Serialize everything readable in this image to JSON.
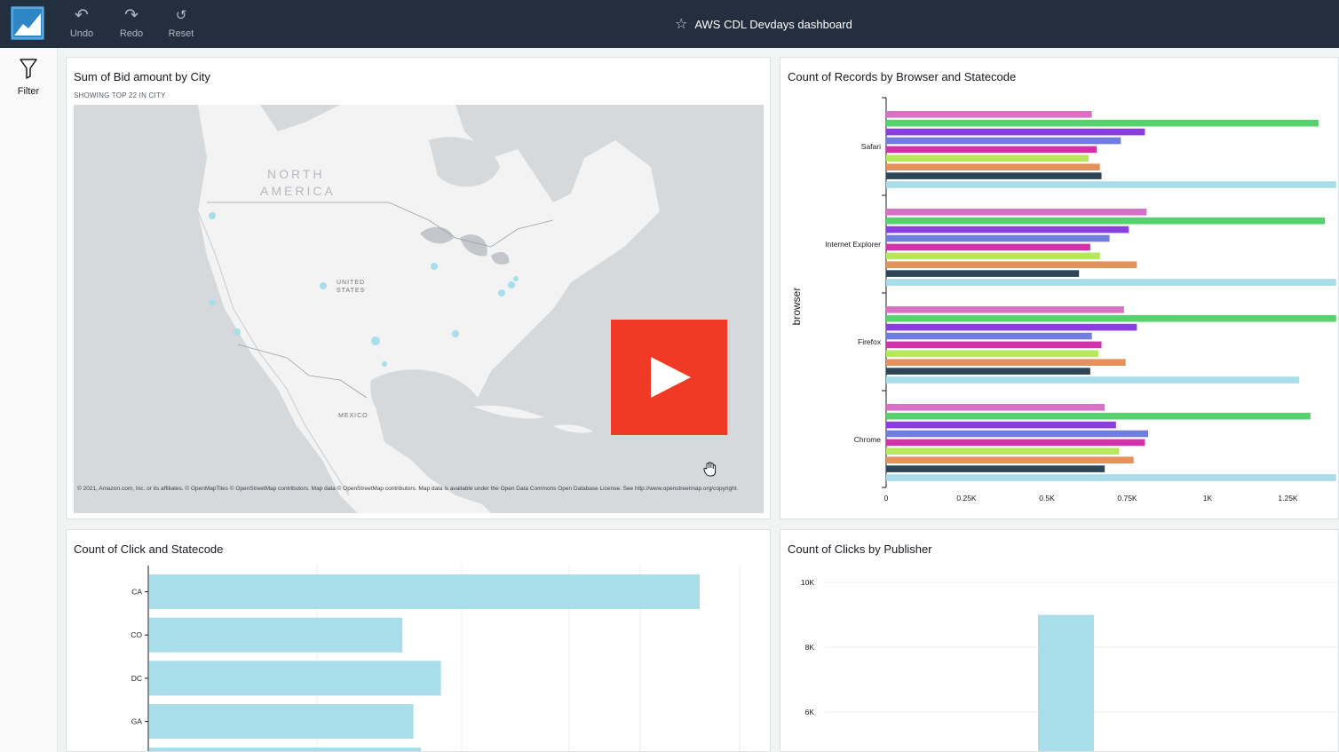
{
  "toolbar": {
    "undo_label": "Undo",
    "redo_label": "Redo",
    "reset_label": "Reset",
    "dashboard_title": "AWS CDL Devdays dashboard"
  },
  "sidebar": {
    "filter_label": "Filter"
  },
  "icons": {
    "app_logo": "quicksight-logo-icon",
    "undo": "undo-icon",
    "redo": "redo-icon",
    "reset": "reset-icon",
    "favorite": "star-icon",
    "filter": "filter-icon",
    "video": "play-icon",
    "cursor": "hand-cursor-icon"
  },
  "colors": {
    "topbar": "#232f3e",
    "play_button": "#f03a26",
    "light_blue": "#a8dde9"
  },
  "panels": {
    "map": {
      "title": "Sum of Bid amount by City",
      "subtitle": "SHOWING TOP 22 IN CITY",
      "labels": {
        "north_america_1": "NORTH",
        "north_america_2": "AMERICA",
        "us_1": "UNITED",
        "us_2": "STATES",
        "mexico": "MEXICO"
      },
      "attribution": "© 2021, Amazon.com, Inc. or its affiliates. © OpenMapTiles © OpenStreetMap contributors. Map data © OpenStreetMap contributors. Map data is available under the Open Data Commons Open Database License. See http://www.openstreetmap.org/copyright."
    },
    "browser": {
      "title": "Count of Records by Browser and Statecode"
    },
    "click": {
      "title": "Count of Click and Statecode"
    },
    "publisher": {
      "title": "Count of Clicks by Publisher"
    }
  },
  "chart_data": [
    {
      "type": "bar",
      "orientation": "horizontal",
      "title": "Count of Records by Browser and Statecode",
      "ylabel": "browser",
      "categories": [
        "Safari",
        "Internet Explorer",
        "Firefox",
        "Chrome"
      ],
      "xticks": [
        "0",
        "0.25K",
        "0.5K",
        "0.75K",
        "1K",
        "1.25K"
      ],
      "xlim": [
        0,
        1400
      ],
      "series": [
        {
          "color": "#d870c5",
          "values": [
            640,
            810,
            740,
            680
          ]
        },
        {
          "color": "#55d16e",
          "values": [
            1345,
            1365,
            1400,
            1320
          ]
        },
        {
          "color": "#8b3ee0",
          "values": [
            805,
            755,
            780,
            715
          ]
        },
        {
          "color": "#6f7ddf",
          "values": [
            730,
            695,
            640,
            815
          ]
        },
        {
          "color": "#d233aa",
          "values": [
            655,
            635,
            670,
            805
          ]
        },
        {
          "color": "#b5e85a",
          "values": [
            630,
            665,
            660,
            725
          ]
        },
        {
          "color": "#e5915c",
          "values": [
            665,
            780,
            745,
            770
          ]
        },
        {
          "color": "#2d4557",
          "values": [
            670,
            600,
            635,
            680
          ]
        },
        {
          "color": "#a8dde9",
          "values": [
            1400,
            1400,
            1285,
            1400
          ]
        }
      ]
    },
    {
      "type": "bar",
      "orientation": "horizontal",
      "title": "Count of Click and Statecode",
      "categories": [
        "CA",
        "CO",
        "DC",
        "GA"
      ],
      "values": [
        1000,
        460,
        530,
        480
      ],
      "series_color": "#a8dde9"
    },
    {
      "type": "bar",
      "title": "Count of Clicks by Publisher",
      "yticks": [
        "10K",
        "8K",
        "6K"
      ],
      "ylim": [
        4000,
        10000
      ],
      "values": [
        9000
      ],
      "series_color": "#a8dde9"
    }
  ]
}
